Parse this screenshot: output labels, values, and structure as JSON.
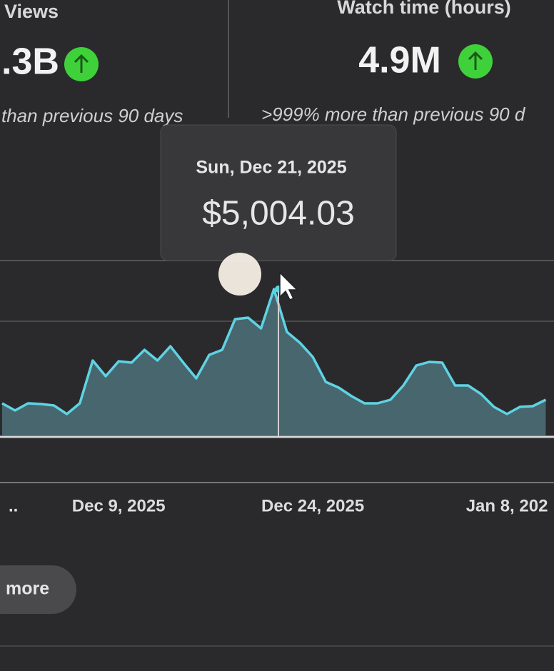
{
  "cards": [
    {
      "title": "Views",
      "value": ".3B",
      "note": "than previous 90 days"
    },
    {
      "title": "Watch time (hours)",
      "value": "4.9M",
      "note": ">999% more than previous 90 d"
    }
  ],
  "tooltip": {
    "date": "Sun, Dec 21, 2025",
    "value": "$5,004.03"
  },
  "button": "more",
  "chart_data": {
    "type": "line",
    "categories": [
      "..",
      null,
      null,
      null,
      null,
      null,
      null,
      null,
      null,
      "Dec 9, 2025",
      null,
      null,
      null,
      null,
      null,
      null,
      null,
      null,
      null,
      null,
      null,
      null,
      null,
      null,
      "Dec 24, 2025",
      null,
      null,
      null,
      null,
      null,
      null,
      null,
      null,
      null,
      null,
      null,
      null,
      null,
      null,
      "Jan 8, 202",
      null,
      null,
      null
    ],
    "values": [
      1098,
      854,
      1098,
      1074,
      1025,
      732,
      1098,
      2563,
      2026,
      2538,
      2490,
      2929,
      2563,
      3051,
      2490,
      1953,
      2758,
      2929,
      3979,
      4028,
      3662,
      5004.03,
      3540,
      3173,
      2685,
      1831,
      1636,
      1343,
      1098,
      1098,
      1221,
      1709,
      2392,
      2514,
      2490,
      1709,
      1709,
      1416,
      976,
      732,
      976,
      1001,
      1221
    ],
    "color": "#5fd3e4",
    "area_color": "#48666e",
    "ylim": [
      0,
      8400
    ]
  }
}
